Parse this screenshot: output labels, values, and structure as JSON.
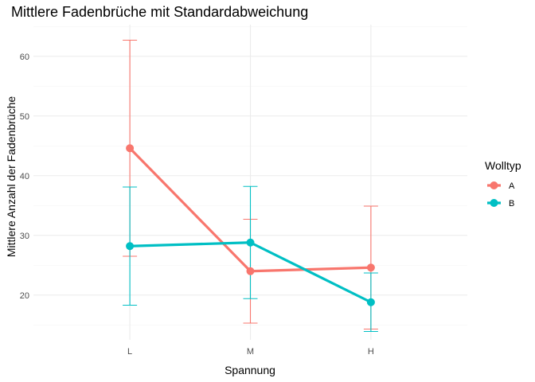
{
  "chart_data": {
    "type": "line",
    "title": "Mittlere Fadenbrüche mit Standardabweichung",
    "xlabel": "Spannung",
    "ylabel": "Mittlere Anzahl der Fadenbrüche",
    "categories": [
      "L",
      "M",
      "H"
    ],
    "yticks": [
      20,
      30,
      40,
      50,
      60
    ],
    "ylim": [
      12.5,
      65.3
    ],
    "grid": true,
    "legend_position": "right",
    "legend_title": "Wolltyp",
    "series": [
      {
        "name": "A",
        "color": "#F8766D",
        "values": [
          44.6,
          24.0,
          24.6
        ],
        "sd": [
          18.1,
          8.7,
          10.3
        ]
      },
      {
        "name": "B",
        "color": "#00BFC4",
        "values": [
          28.2,
          28.8,
          18.8
        ],
        "sd": [
          9.9,
          9.4,
          4.9
        ]
      }
    ]
  }
}
